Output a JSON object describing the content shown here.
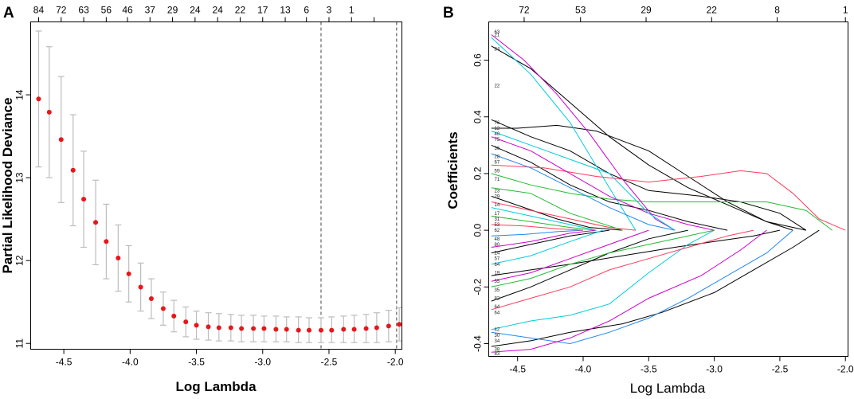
{
  "chart_data": [
    {
      "panel_label": "A",
      "type": "scatter",
      "subtype": "cross-validation error bars",
      "xlabel": "Log Lambda",
      "ylabel": "Partial Likelihood Deviance",
      "xlim": [
        -4.75,
        -1.95
      ],
      "ylim": [
        10.93,
        14.88
      ],
      "x_ticks": [
        -4.5,
        -4.0,
        -3.5,
        -3.0,
        -2.5,
        -2.0
      ],
      "x_tick_labels": [
        "-4.5",
        "-4.0",
        "-3.5",
        "-3.0",
        "-2.5",
        "-2.0"
      ],
      "y_ticks": [
        11,
        12,
        13,
        14
      ],
      "y_tick_labels": [
        "11",
        "12",
        "13",
        "14"
      ],
      "top_axis_x": [
        -4.69,
        -4.52,
        -4.35,
        -4.18,
        -4.02,
        -3.85,
        -3.68,
        -3.51,
        -3.34,
        -3.17,
        -3.0,
        -2.83,
        -2.67,
        -2.5,
        -2.33,
        -2.16
      ],
      "top_axis_labels": [
        "84",
        "72",
        "63",
        "56",
        "46",
        "37",
        "29",
        "24",
        "24",
        "22",
        "17",
        "13",
        "6",
        "3",
        "1",
        ""
      ],
      "ref_lines_x": [
        -2.56,
        -1.99
      ],
      "points": [
        {
          "x": -4.69,
          "y": 13.95,
          "lo": 13.13,
          "hi": 14.77
        },
        {
          "x": -4.61,
          "y": 13.79,
          "lo": 13.0,
          "hi": 14.58
        },
        {
          "x": -4.52,
          "y": 13.46,
          "lo": 12.7,
          "hi": 14.22
        },
        {
          "x": -4.43,
          "y": 13.09,
          "lo": 12.42,
          "hi": 13.76
        },
        {
          "x": -4.35,
          "y": 12.74,
          "lo": 12.16,
          "hi": 13.32
        },
        {
          "x": -4.26,
          "y": 12.46,
          "lo": 11.95,
          "hi": 12.97
        },
        {
          "x": -4.18,
          "y": 12.23,
          "lo": 11.78,
          "hi": 12.68
        },
        {
          "x": -4.09,
          "y": 12.03,
          "lo": 11.63,
          "hi": 12.43
        },
        {
          "x": -4.01,
          "y": 11.84,
          "lo": 11.5,
          "hi": 12.18
        },
        {
          "x": -3.92,
          "y": 11.68,
          "lo": 11.39,
          "hi": 11.97
        },
        {
          "x": -3.84,
          "y": 11.54,
          "lo": 11.3,
          "hi": 11.78
        },
        {
          "x": -3.75,
          "y": 11.42,
          "lo": 11.22,
          "hi": 11.62
        },
        {
          "x": -3.67,
          "y": 11.33,
          "lo": 11.14,
          "hi": 11.52
        },
        {
          "x": -3.58,
          "y": 11.26,
          "lo": 11.08,
          "hi": 11.44
        },
        {
          "x": -3.5,
          "y": 11.22,
          "lo": 11.05,
          "hi": 11.39
        },
        {
          "x": -3.41,
          "y": 11.2,
          "lo": 11.04,
          "hi": 11.37
        },
        {
          "x": -3.33,
          "y": 11.19,
          "lo": 11.03,
          "hi": 11.36
        },
        {
          "x": -3.24,
          "y": 11.19,
          "lo": 11.03,
          "hi": 11.35
        },
        {
          "x": -3.16,
          "y": 11.18,
          "lo": 11.02,
          "hi": 11.34
        },
        {
          "x": -3.07,
          "y": 11.18,
          "lo": 11.02,
          "hi": 11.34
        },
        {
          "x": -2.99,
          "y": 11.18,
          "lo": 11.02,
          "hi": 11.33
        },
        {
          "x": -2.9,
          "y": 11.17,
          "lo": 11.02,
          "hi": 11.33
        },
        {
          "x": -2.82,
          "y": 11.17,
          "lo": 11.02,
          "hi": 11.32
        },
        {
          "x": -2.73,
          "y": 11.16,
          "lo": 11.01,
          "hi": 11.32
        },
        {
          "x": -2.65,
          "y": 11.16,
          "lo": 11.01,
          "hi": 11.31
        },
        {
          "x": -2.56,
          "y": 11.16,
          "lo": 11.01,
          "hi": 11.31
        },
        {
          "x": -2.48,
          "y": 11.16,
          "lo": 11.01,
          "hi": 11.32
        },
        {
          "x": -2.39,
          "y": 11.17,
          "lo": 11.01,
          "hi": 11.33
        },
        {
          "x": -2.31,
          "y": 11.17,
          "lo": 11.01,
          "hi": 11.34
        },
        {
          "x": -2.22,
          "y": 11.18,
          "lo": 11.01,
          "hi": 11.35
        },
        {
          "x": -2.14,
          "y": 11.19,
          "lo": 11.01,
          "hi": 11.37
        },
        {
          "x": -2.05,
          "y": 11.21,
          "lo": 11.02,
          "hi": 11.4
        },
        {
          "x": -1.97,
          "y": 11.23,
          "lo": 11.03,
          "hi": 11.43
        }
      ]
    },
    {
      "panel_label": "B",
      "type": "line",
      "subtype": "coefficient paths",
      "xlabel": "Log Lambda",
      "ylabel": "Coefficients",
      "xlim": [
        -4.72,
        -1.98
      ],
      "ylim": [
        -0.445,
        0.735
      ],
      "x_ticks": [
        -4.5,
        -4.0,
        -3.5,
        -3.0,
        -2.5,
        -2.0
      ],
      "x_tick_labels": [
        "-4.5",
        "-4.0",
        "-3.5",
        "-3.0",
        "-2.5",
        "-2.0"
      ],
      "y_ticks": [
        -0.4,
        -0.2,
        0.0,
        0.2,
        0.4,
        0.6
      ],
      "y_tick_labels": [
        "-0.4",
        "-0.2",
        "0.0",
        "0.2",
        "0.4",
        "0.6"
      ],
      "top_axis_x": [
        -4.45,
        -4.02,
        -3.52,
        -3.02,
        -2.52,
        -2.0
      ],
      "top_axis_labels": [
        "72",
        "53",
        "29",
        "22",
        "8",
        "1"
      ],
      "left_var_labels": [
        {
          "y": 0.7,
          "label": "63"
        },
        {
          "y": 0.69,
          "label": "21"
        },
        {
          "y": 0.64,
          "label": "84"
        },
        {
          "y": 0.51,
          "label": "22"
        },
        {
          "y": 0.38,
          "label": "76"
        },
        {
          "y": 0.36,
          "label": "12"
        },
        {
          "y": 0.34,
          "label": "40"
        },
        {
          "y": 0.32,
          "label": "75"
        },
        {
          "y": 0.29,
          "label": "36"
        },
        {
          "y": 0.26,
          "label": "28"
        },
        {
          "y": 0.24,
          "label": "67"
        },
        {
          "y": 0.21,
          "label": "59"
        },
        {
          "y": 0.18,
          "label": "71"
        },
        {
          "y": 0.14,
          "label": "23"
        },
        {
          "y": 0.12,
          "label": "29"
        },
        {
          "y": 0.09,
          "label": "14"
        },
        {
          "y": 0.06,
          "label": "17"
        },
        {
          "y": 0.04,
          "label": "31"
        },
        {
          "y": 0.02,
          "label": "53"
        },
        {
          "y": 0.0,
          "label": "62"
        },
        {
          "y": -0.03,
          "label": "48"
        },
        {
          "y": -0.05,
          "label": "80"
        },
        {
          "y": -0.08,
          "label": "24"
        },
        {
          "y": -0.1,
          "label": "57"
        },
        {
          "y": -0.12,
          "label": "64"
        },
        {
          "y": -0.15,
          "label": "19"
        },
        {
          "y": -0.18,
          "label": "55"
        },
        {
          "y": -0.21,
          "label": "35"
        },
        {
          "y": -0.24,
          "label": "82"
        },
        {
          "y": -0.27,
          "label": "64"
        },
        {
          "y": -0.29,
          "label": "64"
        },
        {
          "y": -0.35,
          "label": "42"
        },
        {
          "y": -0.37,
          "label": "30"
        },
        {
          "y": -0.39,
          "label": "34"
        },
        {
          "y": -0.42,
          "label": "38"
        },
        {
          "y": -0.435,
          "label": "83"
        }
      ],
      "series": [
        {
          "color": "#000000",
          "x": [
            -4.7,
            -4.4,
            -4.1,
            -3.8,
            -3.5,
            -3.2,
            -2.9,
            -2.6,
            -2.4
          ],
          "y": [
            0.65,
            0.57,
            0.45,
            0.33,
            0.23,
            0.15,
            0.09,
            0.03,
            0.0
          ]
        },
        {
          "color": "#000000",
          "x": [
            -4.7,
            -4.5,
            -4.2,
            -3.9,
            -3.5,
            -3.2,
            -2.9,
            -2.6,
            -2.3
          ],
          "y": [
            0.36,
            0.36,
            0.37,
            0.35,
            0.28,
            0.19,
            0.1,
            0.03,
            0.0
          ]
        },
        {
          "color": "#000000",
          "x": [
            -4.7,
            -4.4,
            -4.1,
            -3.8,
            -3.5,
            -3.1,
            -2.8,
            -2.5,
            -2.3
          ],
          "y": [
            0.39,
            0.33,
            0.28,
            0.2,
            0.14,
            0.12,
            0.1,
            0.06,
            0.0
          ]
        },
        {
          "color": "#000000",
          "x": [
            -4.7,
            -4.4,
            -4.1,
            -3.7,
            -3.4,
            -3.0,
            -2.7,
            -2.4,
            -2.2
          ],
          "y": [
            -0.41,
            -0.39,
            -0.36,
            -0.33,
            -0.29,
            -0.22,
            -0.14,
            -0.06,
            0.0
          ]
        },
        {
          "color": "#000000",
          "x": [
            -4.7,
            -4.4,
            -4.1,
            -3.7,
            -3.3,
            -3.0,
            -2.7,
            -2.5
          ],
          "y": [
            -0.16,
            -0.14,
            -0.12,
            -0.09,
            -0.06,
            -0.04,
            -0.02,
            0.0
          ]
        },
        {
          "color": "#000000",
          "x": [
            -4.7,
            -4.4,
            -4.1,
            -3.8,
            -3.5,
            -3.2,
            -2.9
          ],
          "y": [
            0.3,
            0.24,
            0.16,
            0.1,
            0.07,
            0.03,
            0.0
          ]
        },
        {
          "color": "#000000",
          "x": [
            -4.7,
            -4.4,
            -4.1,
            -3.8,
            -3.5,
            -3.2
          ],
          "y": [
            -0.25,
            -0.2,
            -0.14,
            -0.08,
            -0.03,
            0.0
          ]
        },
        {
          "color": "#000000",
          "x": [
            -4.7,
            -4.45,
            -4.2,
            -3.95,
            -3.7
          ],
          "y": [
            0.12,
            0.08,
            0.04,
            0.01,
            0.0
          ]
        },
        {
          "color": "#000000",
          "x": [
            -4.7,
            -4.4,
            -4.1,
            -3.8
          ],
          "y": [
            -0.08,
            -0.05,
            -0.02,
            0.0
          ]
        },
        {
          "color": "#FF3B5C",
          "x": [
            -4.7,
            -4.3,
            -3.9,
            -3.5,
            -3.1,
            -2.8,
            -2.6,
            -2.4,
            -2.2,
            -2.0
          ],
          "y": [
            0.23,
            0.22,
            0.19,
            0.17,
            0.19,
            0.21,
            0.2,
            0.13,
            0.04,
            0.0
          ]
        },
        {
          "color": "#22BB33",
          "x": [
            -4.7,
            -4.4,
            -4.1,
            -3.8,
            -3.5,
            -3.2,
            -2.9,
            -2.6,
            -2.3,
            -2.1
          ],
          "y": [
            0.2,
            0.16,
            0.13,
            0.11,
            0.1,
            0.1,
            0.1,
            0.1,
            0.07,
            0.0
          ]
        },
        {
          "color": "#2288EE",
          "x": [
            -4.7,
            -4.4,
            -4.1,
            -3.8,
            -3.5,
            -3.2,
            -2.9,
            -2.6,
            -2.4
          ],
          "y": [
            -0.36,
            -0.38,
            -0.4,
            -0.36,
            -0.31,
            -0.24,
            -0.16,
            -0.08,
            0.0
          ]
        },
        {
          "color": "#CC00CC",
          "x": [
            -4.7,
            -4.45,
            -4.2,
            -3.95,
            -3.7,
            -3.45,
            -3.3
          ],
          "y": [
            0.69,
            0.6,
            0.48,
            0.34,
            0.18,
            0.04,
            0.0
          ]
        },
        {
          "color": "#00CCDD",
          "x": [
            -4.7,
            -4.4,
            -4.1,
            -3.8,
            -3.6
          ],
          "y": [
            0.68,
            0.55,
            0.38,
            0.15,
            0.0
          ]
        },
        {
          "color": "#CC00CC",
          "x": [
            -4.7,
            -4.4,
            -4.1,
            -3.8,
            -3.5,
            -3.1,
            -2.8,
            -2.6
          ],
          "y": [
            -0.43,
            -0.42,
            -0.38,
            -0.32,
            -0.24,
            -0.16,
            -0.07,
            0.0
          ]
        },
        {
          "color": "#00CCDD",
          "x": [
            -4.7,
            -4.4,
            -4.1,
            -3.8,
            -3.5,
            -3.2,
            -3.0
          ],
          "y": [
            -0.35,
            -0.32,
            -0.3,
            -0.26,
            -0.15,
            -0.05,
            0.0
          ]
        },
        {
          "color": "#FF3B5C",
          "x": [
            -4.7,
            -4.4,
            -4.1,
            -3.8,
            -3.5,
            -3.2,
            -2.9,
            -2.7
          ],
          "y": [
            -0.28,
            -0.24,
            -0.2,
            -0.14,
            -0.1,
            -0.06,
            -0.02,
            0.0
          ]
        },
        {
          "color": "#22BB33",
          "x": [
            -4.7,
            -4.4,
            -4.1,
            -3.8,
            -3.5,
            -3.2,
            -3.0
          ],
          "y": [
            -0.2,
            -0.17,
            -0.12,
            -0.08,
            -0.05,
            -0.02,
            0.0
          ]
        },
        {
          "color": "#CC00CC",
          "x": [
            -4.7,
            -4.4,
            -4.1,
            -3.8,
            -3.5,
            -3.2,
            -3.0
          ],
          "y": [
            0.33,
            0.28,
            0.2,
            0.12,
            0.06,
            0.02,
            0.0
          ]
        },
        {
          "color": "#2288EE",
          "x": [
            -4.7,
            -4.4,
            -4.1,
            -3.8,
            -3.5,
            -3.3
          ],
          "y": [
            0.27,
            0.22,
            0.15,
            0.08,
            0.02,
            0.0
          ]
        },
        {
          "color": "#00CCDD",
          "x": [
            -4.7,
            -4.4,
            -4.1,
            -3.8,
            -3.5,
            -3.3
          ],
          "y": [
            0.35,
            0.3,
            0.25,
            0.2,
            0.06,
            0.0
          ]
        },
        {
          "color": "#FF3B5C",
          "x": [
            -4.7,
            -4.4,
            -4.1,
            -3.8,
            -3.6
          ],
          "y": [
            0.1,
            0.07,
            0.04,
            0.01,
            0.0
          ]
        },
        {
          "color": "#22BB33",
          "x": [
            -4.7,
            -4.4,
            -4.1,
            -3.9
          ],
          "y": [
            0.05,
            0.03,
            0.01,
            0.0
          ]
        },
        {
          "color": "#CC00CC",
          "x": [
            -4.7,
            -4.4,
            -4.1,
            -3.9
          ],
          "y": [
            -0.06,
            -0.04,
            -0.01,
            0.0
          ]
        },
        {
          "color": "#00CCDD",
          "x": [
            -4.7,
            -4.4,
            -4.1,
            -3.85
          ],
          "y": [
            -0.12,
            -0.09,
            -0.04,
            0.0
          ]
        },
        {
          "color": "#2288EE",
          "x": [
            -4.7,
            -4.45,
            -4.2,
            -4.0
          ],
          "y": [
            -0.02,
            -0.015,
            -0.005,
            0.0
          ]
        },
        {
          "color": "#FF3B5C",
          "x": [
            -4.7,
            -4.45,
            -4.2,
            -4.0
          ],
          "y": [
            0.02,
            0.015,
            0.005,
            0.0
          ]
        },
        {
          "color": "#22BB33",
          "x": [
            -4.7,
            -4.4,
            -4.1,
            -3.7
          ],
          "y": [
            0.15,
            0.13,
            0.06,
            0.0
          ]
        },
        {
          "color": "#CC00CC",
          "x": [
            -4.7,
            -4.4,
            -4.1,
            -3.8,
            -3.5
          ],
          "y": [
            -0.18,
            -0.15,
            -0.1,
            -0.05,
            0.0
          ]
        },
        {
          "color": "#00CCDD",
          "x": [
            -4.7,
            -4.4,
            -4.1,
            -3.9
          ],
          "y": [
            0.08,
            0.05,
            0.02,
            0.0
          ]
        }
      ]
    }
  ]
}
